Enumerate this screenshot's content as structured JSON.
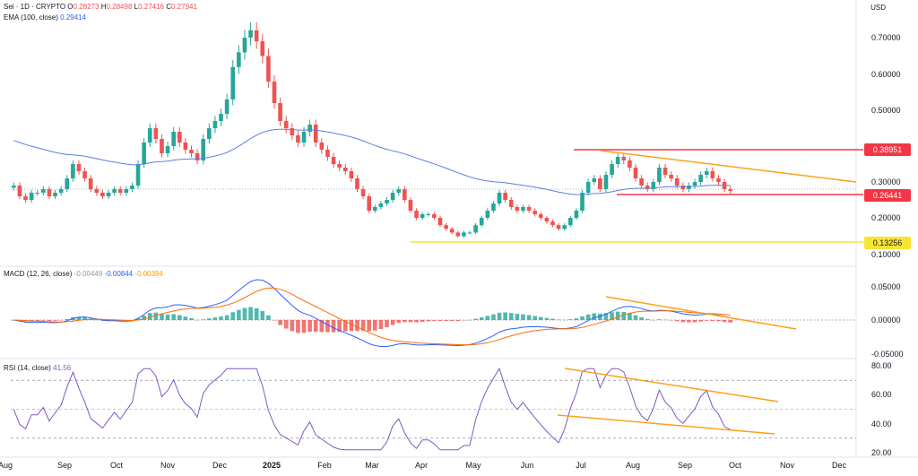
{
  "header": {
    "symbol": "Sei · 1D · CRYPTO",
    "o_label": "O",
    "o_value": "0.28273",
    "h_label": "H",
    "h_value": "0.28498",
    "l_label": "L",
    "l_value": "0.27416",
    "c_label": "C",
    "c_value": "0.27941",
    "ema_label": "EMA (100, close)",
    "ema_value": "0.29414",
    "currency": "USD"
  },
  "macd_header": {
    "label": "MACD (12, 26, close)",
    "hist": "-0.00449",
    "macd": "-0.00844",
    "signal": "-0.00394"
  },
  "rsi_header": {
    "label": "RSI (14, close)",
    "value": "41.56"
  },
  "colors": {
    "up": "#26a69a",
    "down": "#ef5350",
    "ema": "#5b7fe0",
    "trend": "#ff9f1a",
    "level_red": "#f23645",
    "level_yellow": "#f7e434",
    "macd": "#2962ff",
    "signal": "#ff6d00",
    "rsi": "#7e57c2"
  },
  "price_tags": {
    "resistance": "0.38951",
    "support": "0.26441",
    "low": "0.13256"
  },
  "chart_data": [
    {
      "type": "line",
      "panel": "price",
      "title": "",
      "yticks": [
        "0.70000",
        "0.60000",
        "0.50000",
        "0.30000",
        "0.20000",
        "0.10000"
      ],
      "ylim": [
        0.1,
        0.7
      ],
      "x_labels": [
        "Aug",
        "Sep",
        "Oct",
        "Nov",
        "Dec",
        "2025",
        "Feb",
        "Mar",
        "Apr",
        "May",
        "Jun",
        "Jul",
        "Aug",
        "Sep",
        "Oct",
        "Nov",
        "Dec"
      ],
      "series": [
        {
          "values_close": [
            0.29,
            0.26,
            0.25,
            0.27,
            0.27,
            0.28,
            0.26,
            0.27,
            0.28,
            0.31,
            0.35,
            0.33,
            0.31,
            0.28,
            0.27,
            0.26,
            0.27,
            0.28,
            0.27,
            0.28,
            0.29,
            0.35,
            0.41,
            0.45,
            0.42,
            0.38,
            0.4,
            0.44,
            0.41,
            0.39,
            0.38,
            0.36,
            0.42,
            0.45,
            0.47,
            0.49,
            0.53,
            0.62,
            0.66,
            0.7,
            0.72,
            0.69,
            0.65,
            0.58,
            0.52,
            0.47,
            0.45,
            0.43,
            0.41,
            0.44,
            0.46,
            0.41,
            0.39,
            0.37,
            0.35,
            0.34,
            0.33,
            0.31,
            0.28,
            0.26,
            0.22,
            0.23,
            0.24,
            0.25,
            0.27,
            0.28,
            0.25,
            0.22,
            0.2,
            0.21,
            0.21,
            0.2,
            0.18,
            0.17,
            0.16,
            0.15,
            0.16,
            0.16,
            0.18,
            0.2,
            0.22,
            0.24,
            0.27,
            0.25,
            0.23,
            0.22,
            0.23,
            0.22,
            0.21,
            0.2,
            0.19,
            0.18,
            0.17,
            0.18,
            0.2,
            0.22,
            0.27,
            0.3,
            0.31,
            0.28,
            0.32,
            0.35,
            0.37,
            0.36,
            0.34,
            0.31,
            0.29,
            0.28,
            0.3,
            0.34,
            0.32,
            0.31,
            0.29,
            0.28,
            0.29,
            0.3,
            0.32,
            0.33,
            0.31,
            0.3,
            0.28,
            0.275
          ]
        }
      ]
    },
    {
      "type": "line",
      "panel": "macd",
      "title": "",
      "yticks": [
        "0.05000",
        "0.00000",
        "-0.05000"
      ],
      "ylim": [
        -0.055,
        0.06
      ]
    },
    {
      "type": "line",
      "panel": "rsi",
      "title": "",
      "yticks": [
        "80.00",
        "60.00",
        "40.00",
        "20.00"
      ],
      "ylim": [
        20,
        80
      ]
    }
  ]
}
